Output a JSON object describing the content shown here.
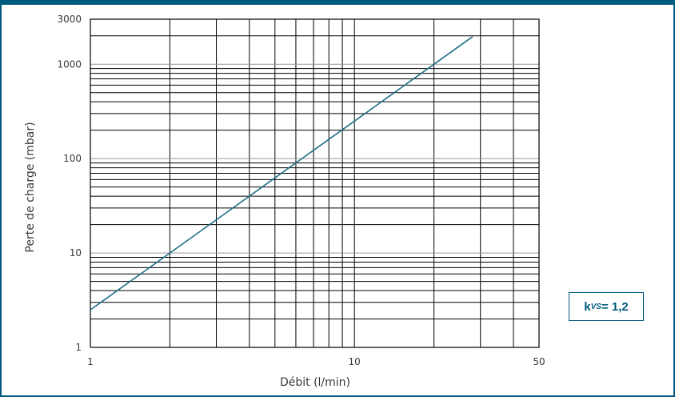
{
  "chart_data": {
    "type": "line",
    "title": "",
    "xlabel": "Débit (l/min)",
    "ylabel": "Perte de charge (mbar)",
    "x_scale": "log",
    "y_scale": "log",
    "xlim": [
      1,
      50
    ],
    "ylim": [
      1,
      3000
    ],
    "x_tick_labels": [
      "1",
      "10",
      "50"
    ],
    "y_tick_labels": [
      "1",
      "10",
      "100",
      "1000",
      "3000"
    ],
    "grid": true,
    "line_color": "#1f6f8b",
    "grid_color": "#000000",
    "accent_color": "#005a7e",
    "series": [
      {
        "x": [
          1,
          2,
          3,
          5,
          10,
          14,
          20,
          28
        ],
        "y": [
          2.5,
          10,
          22.5,
          62.5,
          250,
          490,
          1000,
          1960
        ]
      }
    ],
    "annotation": {
      "base": "k",
      "subscript": "VS",
      "rest": " = 1,2"
    }
  }
}
